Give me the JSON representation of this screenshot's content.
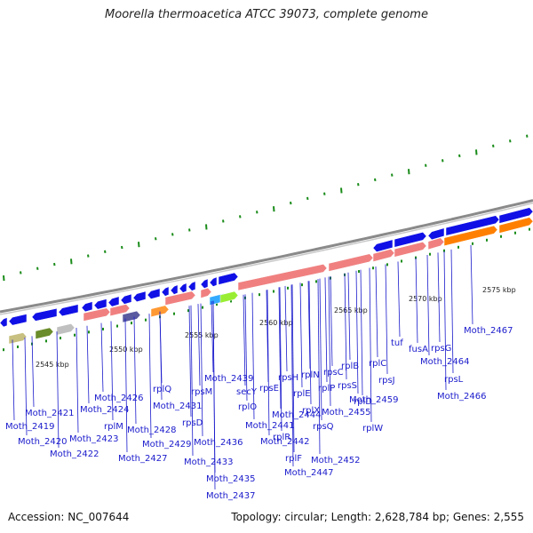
{
  "title": "Moorella thermoacetica ATCC 39073, complete genome",
  "footer": {
    "accession": "Accession: NC_007644",
    "topology": "Topology: circular; Length: 2,628,784 bp; Genes: 2,555"
  },
  "colors": {
    "backbone": "#8a8a8a",
    "forward_gene": "#1010e6",
    "reverse_gene": "#f08080",
    "rrna": "#ff8000",
    "tick": "#1a8c1a",
    "label_line": "#1a1acc"
  },
  "scale_labels": [
    "2545 kbp",
    "2550 kbp",
    "2555 kbp",
    "2560 kbp",
    "2565 kbp",
    "2570 kbp",
    "2575 kbp"
  ],
  "gene_labels": [
    "Moth_2421",
    "Moth_2419",
    "Moth_2420",
    "Moth_2422",
    "Moth_2423",
    "Moth_2424",
    "rplM",
    "Moth_2426",
    "Moth_2427",
    "Moth_2428",
    "Moth_2429",
    "rplQ",
    "Moth_2431",
    "rpsD",
    "rpsM",
    "Moth_2433",
    "Moth_2435",
    "Moth_2436",
    "Moth_2437",
    "Moth_2439",
    "secY",
    "rplO",
    "Moth_2441",
    "Moth_2442",
    "rpsE",
    "Moth_2444",
    "rplR",
    "rplF",
    "Moth_2447",
    "rpsH",
    "rplE",
    "rplX",
    "rplN",
    "rpsQ",
    "rplP",
    "rpsC",
    "Moth_2452",
    "rplB",
    "rpsS",
    "Moth_2455",
    "rplW",
    "rplD",
    "rplC",
    "Moth_2459",
    "rpsJ",
    "tuf",
    "fusA",
    "Moth_2464",
    "rpsG",
    "rpsL",
    "Moth_2466",
    "Moth_2467"
  ]
}
